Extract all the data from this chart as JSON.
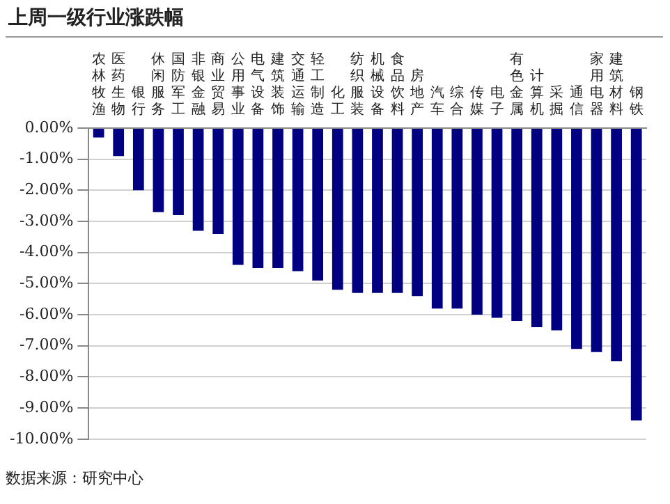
{
  "chart_data": {
    "type": "bar",
    "title": "上周一级行业涨跌幅",
    "categories": [
      "农林牧渔",
      "医药生物",
      "银行",
      "休闲服务",
      "国防军工",
      "非银金融",
      "商业贸易",
      "公用事业",
      "电气设备",
      "建筑装饰",
      "交通运输",
      "轻工制造",
      "化工",
      "纺织服装",
      "机械设备",
      "食品饮料",
      "房地产",
      "汽车",
      "综合",
      "传媒",
      "电子",
      "有色金属",
      "计算机",
      "采掘",
      "通信",
      "家用电器",
      "建筑材料",
      "钢铁"
    ],
    "values": [
      -0.3,
      -0.9,
      -2.0,
      -2.7,
      -2.8,
      -3.3,
      -3.4,
      -4.4,
      -4.5,
      -4.5,
      -4.6,
      -4.9,
      -5.2,
      -5.3,
      -5.3,
      -5.3,
      -5.4,
      -5.8,
      -5.8,
      -6.0,
      -6.1,
      -6.2,
      -6.4,
      -6.5,
      -7.1,
      -7.2,
      -7.5,
      -9.4
    ],
    "color": "#000080",
    "ylim": [
      -10,
      0
    ],
    "yticks": [
      {
        "value": 0,
        "label": "0.00%"
      },
      {
        "value": -1,
        "label": "-1.00%"
      },
      {
        "value": -2,
        "label": "-2.00%"
      },
      {
        "value": -3,
        "label": "-3.00%"
      },
      {
        "value": -4,
        "label": "-4.00%"
      },
      {
        "value": -5,
        "label": "-5.00%"
      },
      {
        "value": -6,
        "label": "-6.00%"
      },
      {
        "value": -7,
        "label": "-7.00%"
      },
      {
        "value": -8,
        "label": "-8.00%"
      },
      {
        "value": -9,
        "label": "-9.00%"
      },
      {
        "value": -10,
        "label": "-10.00%"
      }
    ],
    "grid": "y",
    "legend": false,
    "annotations": [
      "数据来源：研究中心"
    ]
  }
}
